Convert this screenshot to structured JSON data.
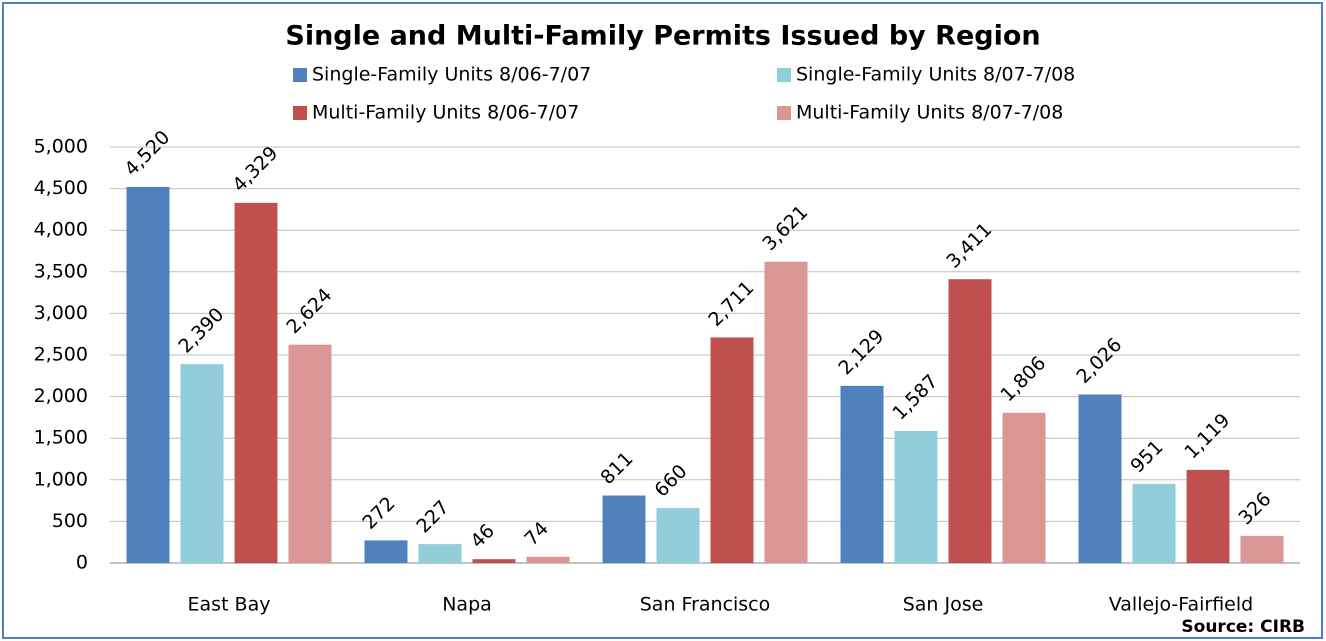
{
  "chart_data": {
    "type": "bar",
    "title": "Single and Multi-Family Permits Issued by Region",
    "source": "Source: CIRB",
    "categories": [
      "East Bay",
      "Napa",
      "San Francisco",
      "San Jose",
      "Vallejo-Fairfield"
    ],
    "series": [
      {
        "name": "Single-Family Units 8/06-7/07",
        "color": "#4f81bd",
        "values": [
          4520,
          272,
          811,
          2129,
          2026
        ],
        "value_labels": [
          "4,520",
          "272",
          "811",
          "2,129",
          "2,026"
        ]
      },
      {
        "name": "Single-Family Units 8/07-7/08",
        "color": "#92cddc",
        "values": [
          2390,
          227,
          660,
          1587,
          951
        ],
        "value_labels": [
          "2,390",
          "227",
          "660",
          "1,587",
          "951"
        ]
      },
      {
        "name": "Multi-Family Units 8/06-7/07",
        "color": "#c0504d",
        "values": [
          4329,
          46,
          2711,
          3411,
          1119
        ],
        "value_labels": [
          "4,329",
          "46",
          "2,711",
          "3,411",
          "1,119"
        ]
      },
      {
        "name": "Multi-Family Units 8/07-7/08",
        "color": "#d99694",
        "values": [
          2624,
          74,
          3621,
          1806,
          326
        ],
        "value_labels": [
          "2,624",
          "74",
          "3,621",
          "1,806",
          "326"
        ]
      }
    ],
    "ylim": [
      0,
      5000
    ],
    "yticks": [
      0,
      500,
      {
        "value": 1000,
        "label": "1,000"
      },
      {
        "value": 1500,
        "label": "1,500"
      },
      {
        "value": 2000,
        "label": "2,000"
      },
      {
        "value": 2500,
        "label": "2,500"
      },
      {
        "value": 3000,
        "label": "3,000"
      },
      {
        "value": 3500,
        "label": "3,500"
      },
      {
        "value": 4000,
        "label": "4,000"
      },
      {
        "value": 4500,
        "label": "4,500"
      },
      {
        "value": 5000,
        "label": "5,000"
      }
    ],
    "grid": true
  }
}
